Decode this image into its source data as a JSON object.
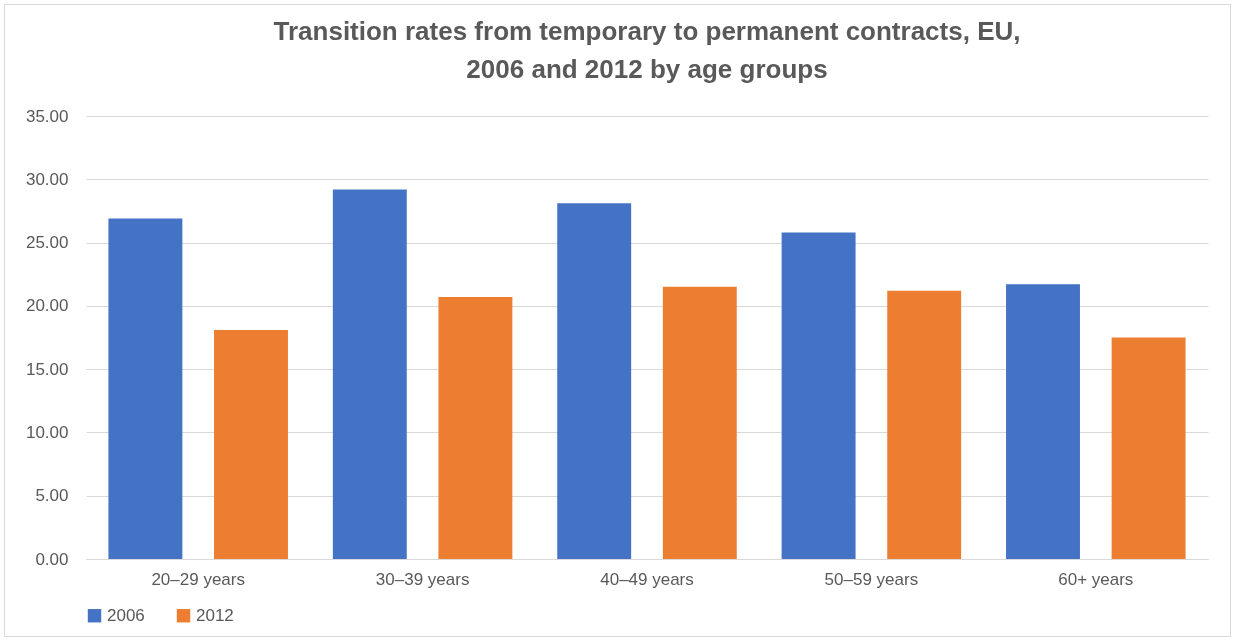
{
  "chart_data": {
    "type": "bar",
    "title": "Transition rates from temporary to permanent contracts, EU, 2006 and 2012 by age groups",
    "categories": [
      "20–29 years",
      "30–39 years",
      "40–49 years",
      "50–59 years",
      "60+ years"
    ],
    "series": [
      {
        "name": "2006",
        "color": "#4472c4",
        "values": [
          26.9,
          29.2,
          28.1,
          25.8,
          21.7
        ]
      },
      {
        "name": "2012",
        "color": "#ed7d31",
        "values": [
          18.1,
          20.7,
          21.5,
          21.2,
          17.5
        ]
      }
    ],
    "ylim": [
      0,
      35
    ],
    "yticks": [
      {
        "value": 0,
        "label": "0.00"
      },
      {
        "value": 5,
        "label": "5.00"
      },
      {
        "value": 10,
        "label": "10.00"
      },
      {
        "value": 15,
        "label": "15.00"
      },
      {
        "value": 20,
        "label": "20.00"
      },
      {
        "value": 25,
        "label": "25.00"
      },
      {
        "value": 30,
        "label": "30.00"
      },
      {
        "value": 35,
        "label": "35.00"
      }
    ],
    "grid": "y",
    "legend": "bottom"
  }
}
